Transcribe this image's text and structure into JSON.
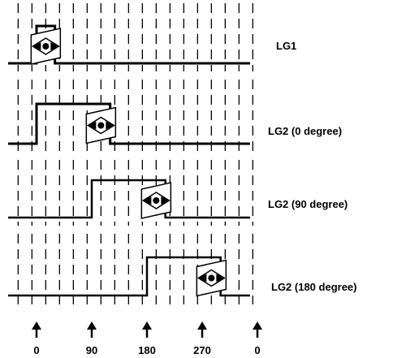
{
  "diagram": {
    "rows": [
      {
        "label": "LG1",
        "rise_deg": 0,
        "fall_deg": 30,
        "marker_deg": 15
      },
      {
        "label": "LG2 (0 degree)",
        "rise_deg": 0,
        "fall_deg": 120,
        "marker_deg": 105
      },
      {
        "label": "LG2 (90 degree)",
        "rise_deg": 90,
        "fall_deg": 210,
        "marker_deg": 195
      },
      {
        "label": "LG2 (180 degree)",
        "rise_deg": 180,
        "fall_deg": 300,
        "marker_deg": 285
      }
    ],
    "axis_ticks": [
      "0",
      "90",
      "180",
      "270",
      "0"
    ],
    "axis_tick_degrees": [
      0,
      90,
      180,
      270,
      360
    ],
    "grid_step_deg": 45,
    "colors": {
      "line": "#000000",
      "background": "#ffffff"
    }
  }
}
